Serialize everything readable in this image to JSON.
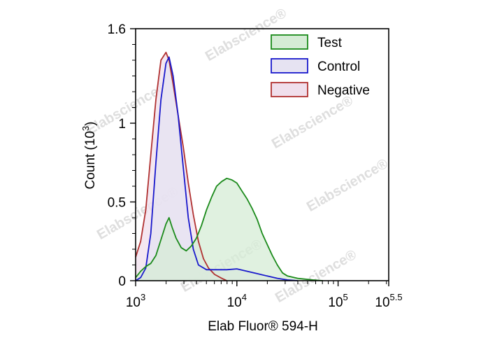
{
  "chart_data": {
    "type": "area",
    "xscale": "log10",
    "xlabel": "Elab Fluor® 594-H",
    "ylabel_main": "Count",
    "ylabel_exp_base": "(10",
    "ylabel_exp_power": "3",
    "ylabel_exp_close": ")",
    "xlim_log10": [
      3,
      5.5
    ],
    "ylim": [
      0,
      1.6
    ],
    "x_ticks": [
      {
        "base": "10",
        "exp": "3",
        "log10": 3
      },
      {
        "base": "10",
        "exp": "4",
        "log10": 4
      },
      {
        "base": "10",
        "exp": "5",
        "log10": 5
      },
      {
        "base": "10",
        "exp": "5.5",
        "log10": 5.5
      }
    ],
    "y_ticks": [
      {
        "label": "0",
        "value": 0
      },
      {
        "label": "0.5",
        "value": 0.5
      },
      {
        "label": "1",
        "value": 1
      },
      {
        "label": "1.6",
        "value": 1.6
      }
    ],
    "legend_position": "top-right",
    "series": [
      {
        "name": "Test",
        "color": "#1a8a1a",
        "fill": "#d5ecd5",
        "points": [
          [
            3.0,
            0.02
          ],
          [
            3.05,
            0.06
          ],
          [
            3.1,
            0.09
          ],
          [
            3.15,
            0.11
          ],
          [
            3.2,
            0.16
          ],
          [
            3.25,
            0.26
          ],
          [
            3.3,
            0.36
          ],
          [
            3.33,
            0.4
          ],
          [
            3.36,
            0.34
          ],
          [
            3.4,
            0.27
          ],
          [
            3.45,
            0.21
          ],
          [
            3.5,
            0.19
          ],
          [
            3.55,
            0.22
          ],
          [
            3.6,
            0.27
          ],
          [
            3.65,
            0.35
          ],
          [
            3.7,
            0.45
          ],
          [
            3.75,
            0.53
          ],
          [
            3.8,
            0.6
          ],
          [
            3.85,
            0.63
          ],
          [
            3.9,
            0.65
          ],
          [
            3.95,
            0.64
          ],
          [
            4.0,
            0.62
          ],
          [
            4.05,
            0.57
          ],
          [
            4.1,
            0.52
          ],
          [
            4.15,
            0.46
          ],
          [
            4.2,
            0.39
          ],
          [
            4.25,
            0.3
          ],
          [
            4.3,
            0.23
          ],
          [
            4.35,
            0.16
          ],
          [
            4.4,
            0.1
          ],
          [
            4.45,
            0.05
          ],
          [
            4.5,
            0.03
          ],
          [
            4.6,
            0.015
          ],
          [
            4.75,
            0.005
          ],
          [
            4.85,
            0.0
          ]
        ]
      },
      {
        "name": "Control",
        "color": "#1818cc",
        "fill": "#e6e3f2",
        "points": [
          [
            3.0,
            0.0
          ],
          [
            3.05,
            0.02
          ],
          [
            3.1,
            0.08
          ],
          [
            3.15,
            0.3
          ],
          [
            3.2,
            0.75
          ],
          [
            3.25,
            1.15
          ],
          [
            3.3,
            1.38
          ],
          [
            3.33,
            1.42
          ],
          [
            3.37,
            1.3
          ],
          [
            3.42,
            1.05
          ],
          [
            3.47,
            0.72
          ],
          [
            3.52,
            0.4
          ],
          [
            3.57,
            0.2
          ],
          [
            3.62,
            0.1
          ],
          [
            3.7,
            0.07
          ],
          [
            3.8,
            0.07
          ],
          [
            3.9,
            0.07
          ],
          [
            4.0,
            0.075
          ],
          [
            4.1,
            0.06
          ],
          [
            4.2,
            0.045
          ],
          [
            4.3,
            0.03
          ],
          [
            4.4,
            0.015
          ],
          [
            4.5,
            0.005
          ],
          [
            4.6,
            0.0
          ]
        ]
      },
      {
        "name": "Negative",
        "color": "#b03030",
        "fill": "#f0dfec",
        "points": [
          [
            3.0,
            0.15
          ],
          [
            3.05,
            0.25
          ],
          [
            3.1,
            0.45
          ],
          [
            3.15,
            0.8
          ],
          [
            3.2,
            1.15
          ],
          [
            3.25,
            1.4
          ],
          [
            3.3,
            1.45
          ],
          [
            3.33,
            1.4
          ],
          [
            3.37,
            1.25
          ],
          [
            3.42,
            1.05
          ],
          [
            3.47,
            0.85
          ],
          [
            3.52,
            0.62
          ],
          [
            3.57,
            0.42
          ],
          [
            3.62,
            0.25
          ],
          [
            3.67,
            0.14
          ],
          [
            3.72,
            0.08
          ],
          [
            3.78,
            0.04
          ],
          [
            3.85,
            0.015
          ],
          [
            3.9,
            0.0
          ]
        ]
      }
    ]
  },
  "watermark_text": "Elabscience®"
}
